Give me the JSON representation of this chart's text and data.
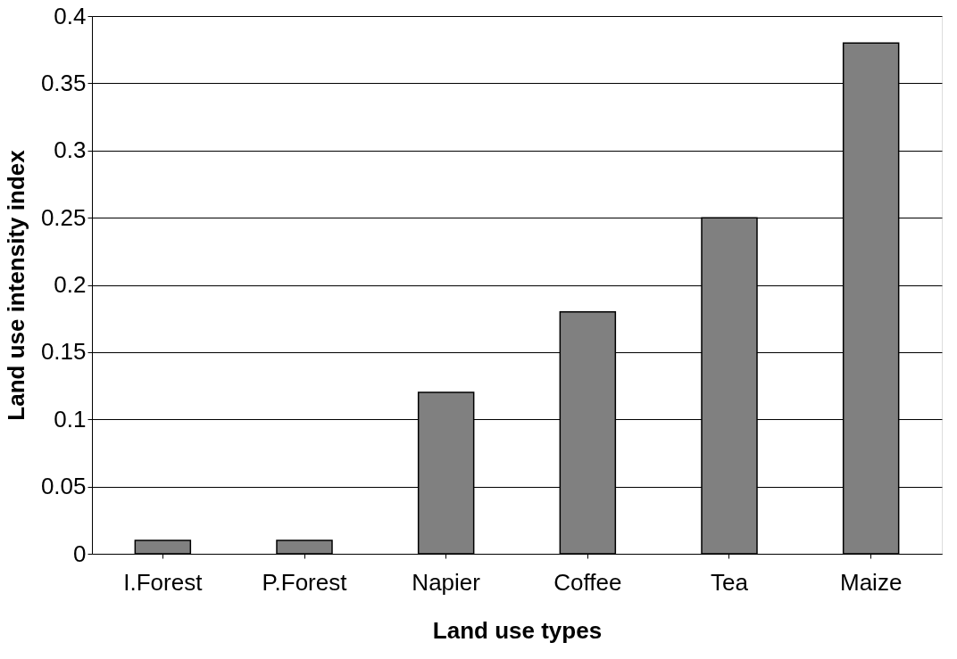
{
  "chart_data": {
    "type": "bar",
    "xlabel": "Land use types",
    "ylabel": "Land use intensity index",
    "categories": [
      "I.Forest",
      "P.Forest",
      "Napier",
      "Coffee",
      "Tea",
      "Maize"
    ],
    "values": [
      0.01,
      0.01,
      0.12,
      0.18,
      0.25,
      0.38
    ],
    "color": "#808080",
    "ylim": [
      0,
      0.4
    ],
    "yticks": [
      0,
      0.05,
      0.1,
      0.15,
      0.2,
      0.25,
      0.3,
      0.35,
      0.4
    ],
    "grid": "y"
  }
}
